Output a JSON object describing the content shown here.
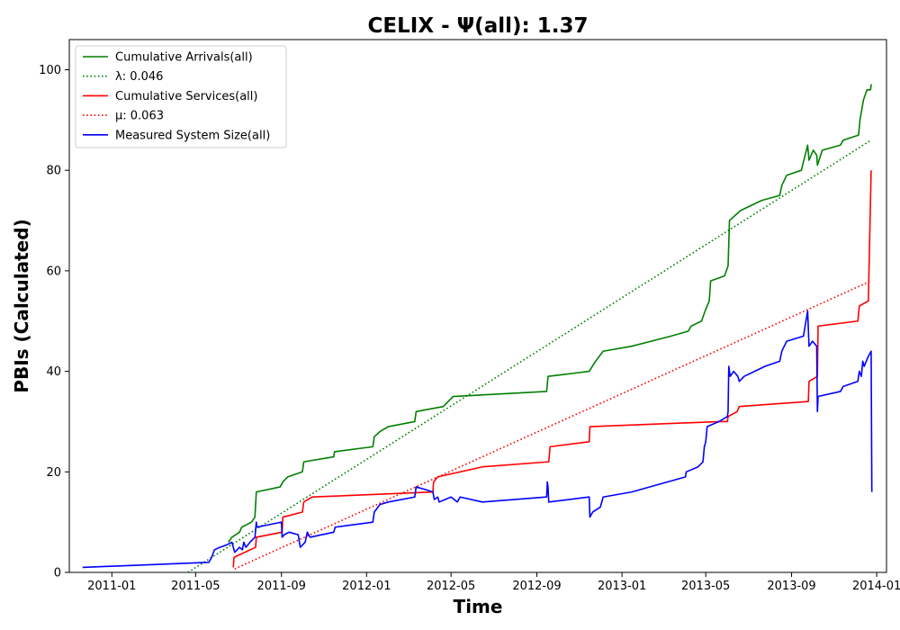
{
  "chart_data": {
    "type": "line",
    "title": "CELIX -  Ψ(all): 1.37",
    "xlabel": "Time",
    "ylabel": "PBIs (Calculated)",
    "xlim": [
      "2010-11-01",
      "2014-01-15"
    ],
    "ylim": [
      0,
      106
    ],
    "yticks": [
      0,
      20,
      40,
      60,
      80,
      100
    ],
    "xticks": [
      {
        "date": "2011-01-01",
        "label": "2011-01"
      },
      {
        "date": "2011-05-01",
        "label": "2011-05"
      },
      {
        "date": "2011-09-01",
        "label": "2011-09"
      },
      {
        "date": "2012-01-01",
        "label": "2012-01"
      },
      {
        "date": "2012-05-01",
        "label": "2012-05"
      },
      {
        "date": "2012-09-01",
        "label": "2012-09"
      },
      {
        "date": "2013-01-01",
        "label": "2013-01"
      },
      {
        "date": "2013-05-01",
        "label": "2013-05"
      },
      {
        "date": "2013-09-01",
        "label": "2013-09"
      },
      {
        "date": "2014-01-01",
        "label": "2014-01"
      }
    ],
    "legend_position": "top-left",
    "grid": false,
    "series": [
      {
        "name": "Cumulative Arrivals(all)",
        "color": "#008000",
        "style": "solid",
        "points": [
          [
            "2011-06-17",
            6
          ],
          [
            "2011-06-22",
            7
          ],
          [
            "2011-07-03",
            8
          ],
          [
            "2011-07-06",
            9
          ],
          [
            "2011-07-20",
            10
          ],
          [
            "2011-07-25",
            11
          ],
          [
            "2011-07-27",
            16
          ],
          [
            "2011-08-30",
            17
          ],
          [
            "2011-09-03",
            18
          ],
          [
            "2011-09-10",
            19
          ],
          [
            "2011-10-01",
            20
          ],
          [
            "2011-10-03",
            22
          ],
          [
            "2011-11-15",
            23
          ],
          [
            "2011-11-16",
            24
          ],
          [
            "2012-01-10",
            25
          ],
          [
            "2012-01-12",
            27
          ],
          [
            "2012-01-20",
            28
          ],
          [
            "2012-02-01",
            29
          ],
          [
            "2012-03-10",
            30
          ],
          [
            "2012-03-12",
            32
          ],
          [
            "2012-04-20",
            33
          ],
          [
            "2012-04-27",
            34
          ],
          [
            "2012-05-04",
            35
          ],
          [
            "2012-09-15",
            36
          ],
          [
            "2012-09-17",
            39
          ],
          [
            "2012-11-15",
            40
          ],
          [
            "2012-11-24",
            42
          ],
          [
            "2012-12-05",
            44
          ],
          [
            "2013-01-15",
            45
          ],
          [
            "2013-03-12",
            47
          ],
          [
            "2013-04-06",
            48
          ],
          [
            "2013-04-10",
            49
          ],
          [
            "2013-04-25",
            50
          ],
          [
            "2013-04-30",
            52
          ],
          [
            "2013-05-06",
            54
          ],
          [
            "2013-05-08",
            58
          ],
          [
            "2013-05-28",
            59
          ],
          [
            "2013-06-02",
            61
          ],
          [
            "2013-06-04",
            70
          ],
          [
            "2013-06-20",
            72
          ],
          [
            "2013-07-20",
            74
          ],
          [
            "2013-08-15",
            75
          ],
          [
            "2013-08-18",
            77
          ],
          [
            "2013-08-25",
            79
          ],
          [
            "2013-09-15",
            80
          ],
          [
            "2013-09-24",
            85
          ],
          [
            "2013-09-26",
            82
          ],
          [
            "2013-10-02",
            84
          ],
          [
            "2013-10-07",
            83
          ],
          [
            "2013-10-08",
            81
          ],
          [
            "2013-10-15",
            84
          ],
          [
            "2013-11-10",
            85
          ],
          [
            "2013-11-14",
            86
          ],
          [
            "2013-12-06",
            87
          ],
          [
            "2013-12-08",
            90
          ],
          [
            "2013-12-13",
            94
          ],
          [
            "2013-12-18",
            96
          ],
          [
            "2013-12-23",
            96
          ],
          [
            "2013-12-24",
            97
          ],
          [
            "2013-12-25",
            97
          ]
        ]
      },
      {
        "name": "λ: 0.046",
        "color": "#008000",
        "style": "dotted",
        "points": [
          [
            "2011-04-20",
            0
          ],
          [
            "2013-12-24",
            86
          ]
        ]
      },
      {
        "name": "Cumulative Services(all)",
        "color": "#ff0000",
        "style": "solid",
        "points": [
          [
            "2011-06-24",
            1
          ],
          [
            "2011-06-25",
            3
          ],
          [
            "2011-07-26",
            5
          ],
          [
            "2011-07-27",
            7
          ],
          [
            "2011-09-02",
            8
          ],
          [
            "2011-09-03",
            11
          ],
          [
            "2011-10-01",
            12
          ],
          [
            "2011-10-03",
            14
          ],
          [
            "2011-10-15",
            15
          ],
          [
            "2012-04-05",
            16
          ],
          [
            "2012-04-06",
            18
          ],
          [
            "2012-04-12",
            19
          ],
          [
            "2012-06-15",
            21
          ],
          [
            "2012-09-18",
            22
          ],
          [
            "2012-09-20",
            25
          ],
          [
            "2012-11-15",
            26
          ],
          [
            "2012-11-16",
            29
          ],
          [
            "2013-05-20",
            30
          ],
          [
            "2013-06-01",
            30
          ],
          [
            "2013-06-02",
            31
          ],
          [
            "2013-06-15",
            32
          ],
          [
            "2013-06-18",
            33
          ],
          [
            "2013-09-25",
            34
          ],
          [
            "2013-09-26",
            38
          ],
          [
            "2013-10-08",
            39
          ],
          [
            "2013-10-09",
            49
          ],
          [
            "2013-12-05",
            50
          ],
          [
            "2013-12-07",
            53
          ],
          [
            "2013-12-20",
            54
          ],
          [
            "2013-12-24",
            80
          ]
        ]
      },
      {
        "name": "μ: 0.063",
        "color": "#ff0000",
        "style": "dotted",
        "points": [
          [
            "2011-06-26",
            0.7
          ],
          [
            "2013-12-24",
            58
          ]
        ]
      },
      {
        "name": "Measured System Size(all)",
        "color": "#0000ff",
        "style": "solid",
        "points": [
          [
            "2010-11-20",
            1
          ],
          [
            "2011-05-20",
            2
          ],
          [
            "2011-05-24",
            3
          ],
          [
            "2011-05-28",
            4.5
          ],
          [
            "2011-06-05",
            5
          ],
          [
            "2011-06-15",
            5.5
          ],
          [
            "2011-06-22",
            6
          ],
          [
            "2011-06-24",
            5
          ],
          [
            "2011-06-26",
            4
          ],
          [
            "2011-07-03",
            5
          ],
          [
            "2011-07-07",
            4.5
          ],
          [
            "2011-07-09",
            6
          ],
          [
            "2011-07-12",
            5
          ],
          [
            "2011-07-18",
            6
          ],
          [
            "2011-07-25",
            7
          ],
          [
            "2011-07-27",
            10
          ],
          [
            "2011-07-28",
            9
          ],
          [
            "2011-09-01",
            10
          ],
          [
            "2011-09-02",
            7
          ],
          [
            "2011-09-05",
            7.5
          ],
          [
            "2011-09-12",
            8
          ],
          [
            "2011-09-25",
            7.5
          ],
          [
            "2011-09-28",
            5
          ],
          [
            "2011-10-05",
            6
          ],
          [
            "2011-10-08",
            8
          ],
          [
            "2011-10-12",
            7
          ],
          [
            "2011-11-15",
            8
          ],
          [
            "2011-11-17",
            9
          ],
          [
            "2012-01-10",
            10
          ],
          [
            "2012-01-12",
            12
          ],
          [
            "2012-01-20",
            13.5
          ],
          [
            "2012-02-01",
            14
          ],
          [
            "2012-03-10",
            15
          ],
          [
            "2012-03-12",
            17
          ],
          [
            "2012-03-25",
            16.5
          ],
          [
            "2012-04-05",
            16
          ],
          [
            "2012-04-07",
            14.5
          ],
          [
            "2012-04-12",
            15
          ],
          [
            "2012-04-14",
            14
          ],
          [
            "2012-05-01",
            15
          ],
          [
            "2012-05-10",
            14
          ],
          [
            "2012-05-14",
            15
          ],
          [
            "2012-06-15",
            14
          ],
          [
            "2012-09-15",
            15
          ],
          [
            "2012-09-16",
            18
          ],
          [
            "2012-09-17",
            17
          ],
          [
            "2012-09-18",
            14
          ],
          [
            "2012-11-15",
            15
          ],
          [
            "2012-11-16",
            11
          ],
          [
            "2012-11-20",
            12
          ],
          [
            "2012-12-01",
            13
          ],
          [
            "2012-12-05",
            15
          ],
          [
            "2013-01-15",
            16
          ],
          [
            "2013-04-02",
            19
          ],
          [
            "2013-04-03",
            20
          ],
          [
            "2013-04-20",
            21
          ],
          [
            "2013-04-27",
            22
          ],
          [
            "2013-04-29",
            25
          ],
          [
            "2013-05-01",
            26
          ],
          [
            "2013-05-03",
            29
          ],
          [
            "2013-05-20",
            30
          ],
          [
            "2013-06-01",
            31
          ],
          [
            "2013-06-02",
            32
          ],
          [
            "2013-06-03",
            41
          ],
          [
            "2013-06-05",
            39
          ],
          [
            "2013-06-10",
            40
          ],
          [
            "2013-06-16",
            39
          ],
          [
            "2013-06-18",
            38
          ],
          [
            "2013-06-25",
            39
          ],
          [
            "2013-07-10",
            40
          ],
          [
            "2013-07-25",
            41
          ],
          [
            "2013-08-15",
            42
          ],
          [
            "2013-08-18",
            44
          ],
          [
            "2013-08-25",
            46
          ],
          [
            "2013-09-18",
            47
          ],
          [
            "2013-09-24",
            52
          ],
          [
            "2013-09-26",
            45
          ],
          [
            "2013-10-01",
            46
          ],
          [
            "2013-10-07",
            45
          ],
          [
            "2013-10-08",
            32
          ],
          [
            "2013-10-09",
            35
          ],
          [
            "2013-11-10",
            36
          ],
          [
            "2013-11-14",
            37
          ],
          [
            "2013-12-05",
            38
          ],
          [
            "2013-12-07",
            40
          ],
          [
            "2013-12-10",
            39
          ],
          [
            "2013-12-12",
            42
          ],
          [
            "2013-12-14",
            41
          ],
          [
            "2013-12-20",
            43
          ],
          [
            "2013-12-24",
            44
          ],
          [
            "2013-12-25",
            16
          ]
        ]
      }
    ]
  }
}
